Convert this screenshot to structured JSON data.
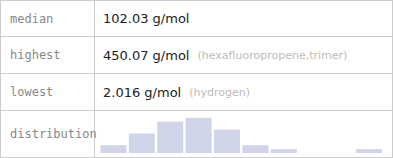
{
  "chart_data": {
    "type": "bar",
    "annotations": [
      [
        "median",
        "102.03 g/mol"
      ],
      [
        "highest",
        "450.07 g/mol",
        "(hexafluoropropene,trimer)"
      ],
      [
        "lowest",
        "2.016 g/mol",
        "(hydrogen)"
      ],
      [
        "distribution"
      ]
    ],
    "categories": [
      null,
      null,
      null,
      null,
      null,
      null,
      null,
      null,
      null,
      null
    ],
    "values": [
      2,
      5,
      8,
      9,
      6,
      2,
      1,
      0,
      0,
      1
    ],
    "color": "#d0d4e8",
    "ylim": [
      0,
      9.72
    ],
    "tick_labels": false,
    "grid": false
  }
}
